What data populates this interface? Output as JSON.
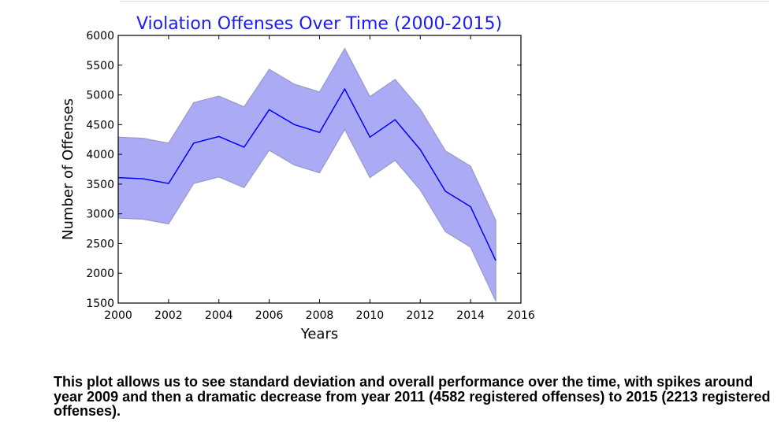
{
  "caption": "This plot allows us to see standard deviation and overall performance over the time, with spikes around year 2009 and then a dramatic decrease from year 2011 (4582 registered offenses) to 2015 (2213 registered offenses).",
  "colors": {
    "line": "#0000ff",
    "band": "#aaaaf5",
    "band_edge": "#9999c8",
    "title": "#1a1aff"
  },
  "chart_data": {
    "type": "line",
    "title": "Violation Offenses Over Time (2000-2015)",
    "xlabel": "Years",
    "ylabel": "Number of Offenses",
    "xlim": [
      2000,
      2016
    ],
    "ylim": [
      1500,
      6000
    ],
    "xticks": [
      2000,
      2002,
      2004,
      2006,
      2008,
      2010,
      2012,
      2014,
      2016
    ],
    "yticks": [
      1500,
      2000,
      2500,
      3000,
      3500,
      4000,
      4500,
      5000,
      5500,
      6000
    ],
    "grid": false,
    "x": [
      2000,
      2001,
      2002,
      2003,
      2004,
      2005,
      2006,
      2007,
      2008,
      2009,
      2010,
      2011,
      2012,
      2013,
      2014,
      2015
    ],
    "mean": [
      3610,
      3590,
      3510,
      4190,
      4300,
      4120,
      4750,
      4500,
      4370,
      5100,
      4290,
      4582,
      4080,
      3380,
      3120,
      2213
    ],
    "upper": [
      4290,
      4270,
      4190,
      4870,
      4980,
      4800,
      5430,
      5180,
      5050,
      5780,
      4970,
      5260,
      4760,
      4060,
      3800,
      2890
    ],
    "lower": [
      2930,
      2910,
      2830,
      3510,
      3620,
      3440,
      4070,
      3820,
      3690,
      4420,
      3610,
      3900,
      3400,
      2700,
      2440,
      1530
    ]
  }
}
